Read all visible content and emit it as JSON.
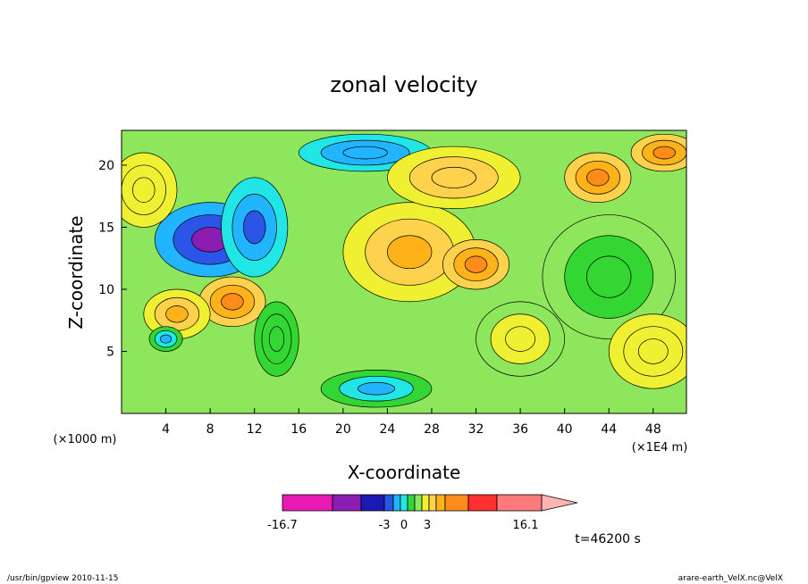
{
  "chart_data": {
    "type": "heatmap",
    "title": "zonal velocity",
    "xlabel": "X-coordinate",
    "ylabel": "Z-coordinate",
    "x_unit": "(×1000 m)",
    "x_scale_note": "(×1E4 m)",
    "xlim": [
      0,
      51
    ],
    "ylim": [
      0,
      22.8
    ],
    "x_ticks": [
      4,
      8,
      12,
      16,
      20,
      24,
      28,
      32,
      36,
      40,
      44,
      48
    ],
    "y_ticks": [
      5,
      10,
      15,
      20
    ],
    "colorbar": {
      "min_label": "-16.7",
      "max_label": "16.1",
      "tick_labels": [
        "-3",
        "0",
        "3"
      ],
      "colors": [
        "#e81ab3",
        "#8b1db3",
        "#1a1ab3",
        "#2a55e6",
        "#22b4ff",
        "#22e6e6",
        "#33d633",
        "#8ee65c",
        "#f0f032",
        "#ffd24d",
        "#ffb21a",
        "#ff8c1a",
        "#ff3030",
        "#ff7a7a",
        "#ffb4b4"
      ]
    },
    "field_regions": [
      {
        "x": 8,
        "z": 14,
        "value": -8,
        "rx": 5,
        "rz": 3
      },
      {
        "x": 12,
        "z": 15,
        "value": -6,
        "rx": 3,
        "rz": 4
      },
      {
        "x": 22,
        "z": 21,
        "value": -5,
        "rx": 6,
        "rz": 1.5
      },
      {
        "x": 26,
        "z": 13,
        "value": 4,
        "rx": 6,
        "rz": 4
      },
      {
        "x": 32,
        "z": 12,
        "value": 5,
        "rx": 3,
        "rz": 2
      },
      {
        "x": 43,
        "z": 19,
        "value": 6,
        "rx": 3,
        "rz": 2
      },
      {
        "x": 44,
        "z": 11,
        "value": -1,
        "rx": 6,
        "rz": 5
      },
      {
        "x": 10,
        "z": 9,
        "value": 5,
        "rx": 3,
        "rz": 2
      },
      {
        "x": 5,
        "z": 8,
        "value": 4,
        "rx": 3,
        "rz": 2
      },
      {
        "x": 4,
        "z": 6,
        "value": -4,
        "rx": 1.5,
        "rz": 1
      },
      {
        "x": 23,
        "z": 2,
        "value": -4,
        "rx": 5,
        "rz": 1.5
      },
      {
        "x": 30,
        "z": 19,
        "value": 3,
        "rx": 6,
        "rz": 2.5
      },
      {
        "x": 49,
        "z": 21,
        "value": 5,
        "rx": 3,
        "rz": 1.5
      },
      {
        "x": 2,
        "z": 18,
        "value": 2,
        "rx": 3,
        "rz": 3
      },
      {
        "x": 14,
        "z": 6,
        "value": -2,
        "rx": 2,
        "rz": 3
      },
      {
        "x": 36,
        "z": 6,
        "value": 1,
        "rx": 4,
        "rz": 3
      },
      {
        "x": 48,
        "z": 5,
        "value": 2,
        "rx": 4,
        "rz": 3
      }
    ]
  },
  "time_label": "t=46200 s",
  "footer": {
    "left": "/usr/bin/gpview  2010-11-15",
    "right": "arare-earth_VelX.nc@VelX"
  }
}
